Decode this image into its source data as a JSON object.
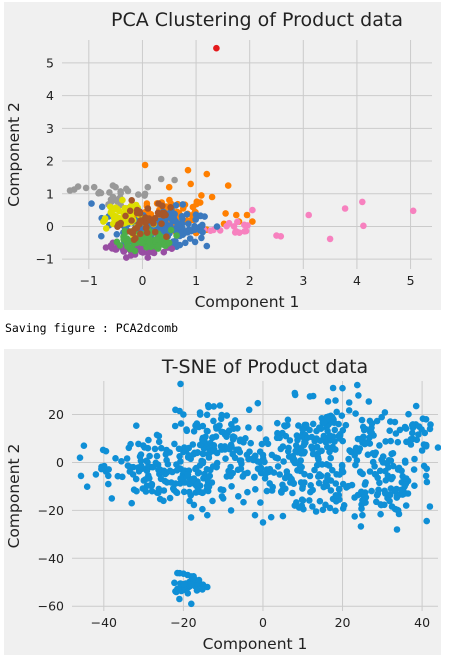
{
  "caption": "Saving figure : PCA2dcomb",
  "chart_data": [
    {
      "type": "scatter",
      "title": "PCA Clustering of Product data",
      "xlabel": "Component 1",
      "ylabel": "Component 2",
      "xlim": [
        -1.5,
        5.4
      ],
      "ylim": [
        -1.3,
        5.7
      ],
      "xticks": [
        -1,
        0,
        1,
        2,
        3,
        4,
        5
      ],
      "yticks": [
        -1,
        0,
        1,
        2,
        3,
        4,
        5
      ],
      "grid": true,
      "series": [
        {
          "color": "#e41a1c",
          "cluster": {
            "cx": 0.0,
            "cy": 0.0,
            "sx": 0,
            "sy": 0,
            "n": 0
          },
          "points": [
            [
              1.38,
              5.45
            ]
          ]
        },
        {
          "color": "#ff7f00",
          "cluster": {
            "cx": 0.55,
            "cy": 0.3,
            "sx": 0.35,
            "sy": 0.3,
            "n": 70
          },
          "points": [
            [
              0.05,
              1.88
            ],
            [
              0.85,
              1.72
            ],
            [
              1.2,
              1.6
            ],
            [
              1.6,
              1.25
            ],
            [
              1.1,
              0.95
            ],
            [
              1.3,
              0.9
            ],
            [
              1.55,
              0.4
            ],
            [
              1.75,
              0.35
            ],
            [
              1.95,
              0.35
            ],
            [
              2.05,
              0.15
            ],
            [
              1.8,
              0.15
            ],
            [
              1.0,
              -0.2
            ],
            [
              0.9,
              1.3
            ],
            [
              0.95,
              0.2
            ],
            [
              1.2,
              -0.1
            ],
            [
              0.5,
              1.2
            ]
          ]
        },
        {
          "color": "#f781bf",
          "cluster": {
            "cx": 1.6,
            "cy": -0.05,
            "sx": 0.25,
            "sy": 0.12,
            "n": 12
          },
          "points": [
            [
              2.05,
              0.5
            ],
            [
              1.9,
              0.05
            ],
            [
              2.5,
              -0.28
            ],
            [
              2.58,
              -0.3
            ],
            [
              3.1,
              0.35
            ],
            [
              3.5,
              -0.38
            ],
            [
              3.78,
              0.55
            ],
            [
              4.1,
              0.75
            ],
            [
              4.12,
              0.02
            ],
            [
              5.05,
              0.48
            ],
            [
              1.45,
              -0.12
            ],
            [
              1.75,
              -0.15
            ]
          ]
        },
        {
          "color": "#999999",
          "cluster": {
            "cx": -0.5,
            "cy": 0.9,
            "sx": 0.3,
            "sy": 0.2,
            "n": 22
          },
          "points": [
            [
              -1.35,
              1.1
            ],
            [
              -1.2,
              1.22
            ],
            [
              -1.05,
              1.18
            ],
            [
              -0.9,
              1.2
            ],
            [
              -0.8,
              1.05
            ],
            [
              -0.55,
              1.25
            ],
            [
              -0.5,
              1.2
            ],
            [
              -0.3,
              1.15
            ],
            [
              0.1,
              1.2
            ],
            [
              0.35,
              1.45
            ],
            [
              0.6,
              1.42
            ],
            [
              0.05,
              1.0
            ]
          ]
        },
        {
          "color": "#3b79be",
          "cluster": {
            "cx": 0.35,
            "cy": -0.05,
            "sx": 0.45,
            "sy": 0.3,
            "n": 150
          },
          "points": [
            [
              -0.95,
              0.7
            ],
            [
              -0.75,
              0.6
            ],
            [
              1.1,
              -0.35
            ],
            [
              1.2,
              -0.6
            ],
            [
              0.8,
              -0.5
            ],
            [
              0.55,
              -0.55
            ]
          ]
        },
        {
          "color": "#984ea3",
          "cluster": {
            "cx": -0.05,
            "cy": -0.65,
            "sx": 0.25,
            "sy": 0.15,
            "n": 45
          },
          "points": [
            [
              -0.3,
              -0.95
            ],
            [
              0.1,
              -0.95
            ],
            [
              -0.55,
              -0.5
            ],
            [
              0.2,
              -0.8
            ]
          ]
        },
        {
          "color": "#4daf4a",
          "cluster": {
            "cx": 0.05,
            "cy": -0.4,
            "sx": 0.25,
            "sy": 0.15,
            "n": 60
          },
          "points": [
            [
              0.5,
              -0.5
            ],
            [
              -0.35,
              -0.4
            ],
            [
              0.3,
              -0.6
            ]
          ]
        },
        {
          "color": "#dede00",
          "cluster": {
            "cx": -0.35,
            "cy": 0.3,
            "sx": 0.2,
            "sy": 0.2,
            "n": 55
          },
          "points": [
            [
              -0.6,
              0.6
            ],
            [
              -0.1,
              0.55
            ],
            [
              -0.7,
              0.2
            ]
          ]
        },
        {
          "color": "#a65628",
          "cluster": {
            "cx": 0.05,
            "cy": 0.15,
            "sx": 0.22,
            "sy": 0.22,
            "n": 45
          },
          "points": [
            [
              0.3,
              0.7
            ],
            [
              -0.2,
              0.8
            ],
            [
              0.4,
              0.4
            ]
          ]
        }
      ]
    },
    {
      "type": "scatter",
      "title": "T-SNE of Product data",
      "xlabel": "Component 1",
      "ylabel": "Component 2",
      "xlim": [
        -48,
        44
      ],
      "ylim": [
        -62,
        34
      ],
      "xticks": [
        -40,
        -20,
        0,
        20,
        40
      ],
      "yticks": [
        -60,
        -40,
        -20,
        0,
        20
      ],
      "grid": true,
      "series": [
        {
          "color": "#0f8fd6",
          "clusters": [
            {
              "cx": -30,
              "cy": -3,
              "sx": 7,
              "sy": 6,
              "n": 90
            },
            {
              "cx": -13,
              "cy": 8,
              "sx": 6,
              "sy": 8,
              "n": 110
            },
            {
              "cx": -18,
              "cy": -8,
              "sx": 5,
              "sy": 6,
              "n": 60
            },
            {
              "cx": 3,
              "cy": 0,
              "sx": 8,
              "sy": 8,
              "n": 130
            },
            {
              "cx": 20,
              "cy": 10,
              "sx": 7,
              "sy": 9,
              "n": 140
            },
            {
              "cx": 33,
              "cy": -8,
              "sx": 5,
              "sy": 8,
              "n": 70
            },
            {
              "cx": 20,
              "cy": -12,
              "sx": 7,
              "sy": 5,
              "n": 60
            },
            {
              "cx": -19,
              "cy": -51,
              "sx": 2.2,
              "sy": 2.0,
              "n": 45
            },
            {
              "cx": 38,
              "cy": 12,
              "sx": 3,
              "sy": 4,
              "n": 25
            }
          ],
          "points": [
            [
              -45,
              7
            ],
            [
              -46,
              2
            ],
            [
              -42,
              -5
            ],
            [
              -38,
              -15
            ],
            [
              -33,
              -17
            ],
            [
              -25,
              -16
            ],
            [
              -22,
              22
            ],
            [
              -20,
              20
            ],
            [
              8,
              29
            ],
            [
              20,
              31
            ],
            [
              24,
              28
            ],
            [
              41,
              18
            ],
            [
              42,
              14
            ],
            [
              40,
              5
            ],
            [
              38,
              -3
            ],
            [
              36,
              -18
            ],
            [
              34,
              -20
            ],
            [
              25,
              -22
            ],
            [
              8,
              -18
            ],
            [
              0,
              -25
            ],
            [
              -2,
              -22
            ],
            [
              10,
              -10
            ],
            [
              -10,
              -15
            ],
            [
              -8,
              -20
            ],
            [
              -14,
              -22
            ],
            [
              -14,
              -52
            ],
            [
              -18,
              -59
            ],
            [
              -21,
              -57
            ]
          ]
        }
      ]
    }
  ]
}
